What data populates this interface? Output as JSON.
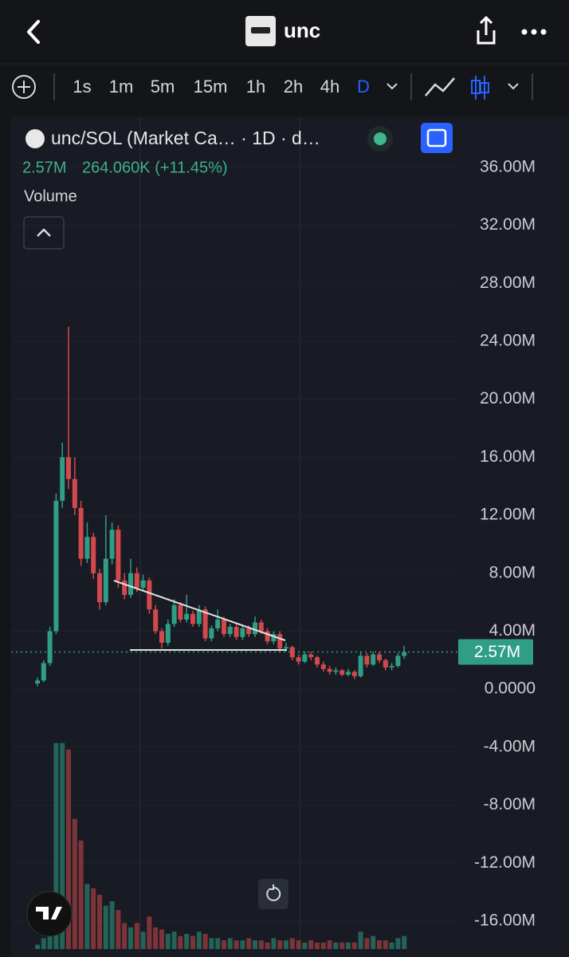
{
  "header": {
    "title": "unc"
  },
  "toolbar": {
    "intervals": [
      "1s",
      "1m",
      "5m",
      "15m",
      "1h",
      "2h",
      "4h",
      "D"
    ],
    "active": "D"
  },
  "chart_data": {
    "type": "candlestick",
    "title": "unc/SOL (Market Ca… · 1D · d…",
    "legend": {
      "last": "2.57M",
      "change": "264.060K (+11.45%)"
    },
    "indicator": "Volume",
    "ylim": [
      -18.2,
      39.4
    ],
    "yticks": [
      {
        "value": 36,
        "label": "36.00M"
      },
      {
        "value": 32,
        "label": "32.00M"
      },
      {
        "value": 28,
        "label": "28.00M"
      },
      {
        "value": 24,
        "label": "24.00M"
      },
      {
        "value": 20,
        "label": "20.00M"
      },
      {
        "value": 16,
        "label": "16.00M"
      },
      {
        "value": 12,
        "label": "12.00M"
      },
      {
        "value": 8,
        "label": "8.00M"
      },
      {
        "value": 4,
        "label": "4.00M"
      },
      {
        "value": 0,
        "label": "0.0000"
      },
      {
        "value": -4,
        "label": "-4.00M"
      },
      {
        "value": -8,
        "label": "-8.00M"
      },
      {
        "value": -12,
        "label": "-12.00M"
      },
      {
        "value": -16,
        "label": "-16.00M"
      }
    ],
    "grid": true,
    "up_color": "#2f9e84",
    "down_color": "#d2484d",
    "candles": [
      [
        0.4,
        0.8,
        0.2,
        0.6
      ],
      [
        0.6,
        2.0,
        0.5,
        1.8
      ],
      [
        1.8,
        4.3,
        1.6,
        4.0
      ],
      [
        4.0,
        13.5,
        3.8,
        13.0
      ],
      [
        13.0,
        17.0,
        12.5,
        16.0
      ],
      [
        16.0,
        25.0,
        13.8,
        14.5
      ],
      [
        14.5,
        16.0,
        12.0,
        12.5
      ],
      [
        12.5,
        13.0,
        8.5,
        9.0
      ],
      [
        9.0,
        11.5,
        8.7,
        10.5
      ],
      [
        10.5,
        10.8,
        7.6,
        8.0
      ],
      [
        8.0,
        8.3,
        5.5,
        6.0
      ],
      [
        6.0,
        12.0,
        5.8,
        9.0
      ],
      [
        9.0,
        11.5,
        8.6,
        11.0
      ],
      [
        11.0,
        11.3,
        7.0,
        7.5
      ],
      [
        7.5,
        8.0,
        6.2,
        6.5
      ],
      [
        6.5,
        9.0,
        6.3,
        8.0
      ],
      [
        8.0,
        8.4,
        6.7,
        7.0
      ],
      [
        7.0,
        7.9,
        6.8,
        7.5
      ],
      [
        7.5,
        7.7,
        5.2,
        5.5
      ],
      [
        5.5,
        5.8,
        3.8,
        4.0
      ],
      [
        4.0,
        4.2,
        2.8,
        3.2
      ],
      [
        3.2,
        4.8,
        3.0,
        4.5
      ],
      [
        4.5,
        6.2,
        4.3,
        5.8
      ],
      [
        5.8,
        6.0,
        4.6,
        4.8
      ],
      [
        4.8,
        6.5,
        4.6,
        5.2
      ],
      [
        5.2,
        5.4,
        4.3,
        4.5
      ],
      [
        4.5,
        5.8,
        4.3,
        5.5
      ],
      [
        5.5,
        5.7,
        3.3,
        3.5
      ],
      [
        3.5,
        4.4,
        3.3,
        4.2
      ],
      [
        4.2,
        5.5,
        4.0,
        4.8
      ],
      [
        4.8,
        5.0,
        3.6,
        3.8
      ],
      [
        3.8,
        4.5,
        3.6,
        4.3
      ],
      [
        4.3,
        4.5,
        3.4,
        3.6
      ],
      [
        3.6,
        4.4,
        3.4,
        4.2
      ],
      [
        4.2,
        4.4,
        3.6,
        3.8
      ],
      [
        3.8,
        5.0,
        3.6,
        4.6
      ],
      [
        4.6,
        4.8,
        3.8,
        4.0
      ],
      [
        4.0,
        4.2,
        3.1,
        3.3
      ],
      [
        3.3,
        4.0,
        3.1,
        3.8
      ],
      [
        3.8,
        4.0,
        2.6,
        2.8
      ],
      [
        2.8,
        3.2,
        2.6,
        2.9
      ],
      [
        2.9,
        3.0,
        2.0,
        2.2
      ],
      [
        2.2,
        2.4,
        1.7,
        1.9
      ],
      [
        1.9,
        2.6,
        1.8,
        2.4
      ],
      [
        2.4,
        2.6,
        2.0,
        2.2
      ],
      [
        2.2,
        2.3,
        1.5,
        1.7
      ],
      [
        1.7,
        1.9,
        1.2,
        1.4
      ],
      [
        1.4,
        1.6,
        1.0,
        1.2
      ],
      [
        1.2,
        1.5,
        1.0,
        1.3
      ],
      [
        1.3,
        1.4,
        0.9,
        1.0
      ],
      [
        1.0,
        1.4,
        0.9,
        1.2
      ],
      [
        1.2,
        1.3,
        0.7,
        0.9
      ],
      [
        0.9,
        2.6,
        0.8,
        2.3
      ],
      [
        2.3,
        2.5,
        1.5,
        1.7
      ],
      [
        1.7,
        2.6,
        1.6,
        2.4
      ],
      [
        2.4,
        2.6,
        1.8,
        2.0
      ],
      [
        2.0,
        2.1,
        1.3,
        1.5
      ],
      [
        1.5,
        1.8,
        1.3,
        1.6
      ],
      [
        1.6,
        2.5,
        1.5,
        2.3
      ],
      [
        2.3,
        3.0,
        2.1,
        2.57
      ]
    ],
    "volume": [
      2,
      5,
      10,
      95,
      95,
      92,
      60,
      50,
      30,
      28,
      25,
      20,
      22,
      18,
      12,
      10,
      12,
      8,
      15,
      10,
      9,
      7,
      8,
      6,
      7,
      6,
      8,
      7,
      5,
      5,
      4,
      5,
      4,
      4,
      5,
      4,
      4,
      3,
      5,
      4,
      4,
      5,
      4,
      3,
      4,
      3,
      3,
      4,
      3,
      3,
      3,
      3,
      8,
      5,
      6,
      4,
      4,
      3,
      5,
      6
    ],
    "last_price": {
      "value": 2.57,
      "label": "2.57M"
    }
  }
}
